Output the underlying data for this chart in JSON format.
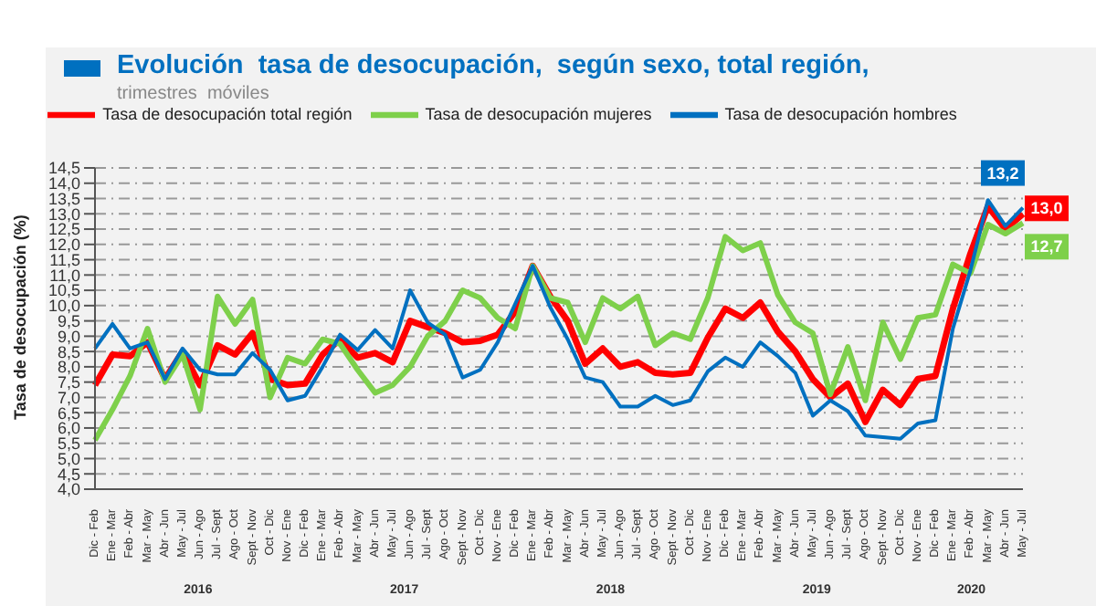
{
  "chart_data": {
    "type": "line",
    "title": "Evolución  tasa de desocupación,  según sexo, total región,",
    "subtitle": "trimestres  móviles",
    "ylabel": "Tasa de desocupación (%)",
    "categories": [
      "Dic - Feb",
      "Ene - Mar",
      "Feb - Abr",
      "Mar - May",
      "Abr - Jun",
      "May - Jul",
      "Jun - Ago",
      "Jul - Sept",
      "Ago - Oct",
      "Sept - Nov",
      "Oct - Dic",
      "Nov - Ene",
      "Dic - Feb",
      "Ene - Mar",
      "Feb - Abr",
      "Mar - May",
      "Abr - Jun",
      "May - Jul",
      "Jun - Ago",
      "Jul - Sept",
      "Ago - Oct",
      "Sept - Nov",
      "Oct - Dic",
      "Nov - Ene",
      "Dic - Feb",
      "Ene - Mar",
      "Feb - Abr",
      "Mar - May",
      "Abr - Jun",
      "May - Jul",
      "Jun - Ago",
      "Jul - Sept",
      "Ago - Oct",
      "Sept - Nov",
      "Oct - Dic",
      "Nov - Ene",
      "Dic - Feb",
      "Ene - Mar",
      "Feb - Abr",
      "Mar - May",
      "Abr - Jun",
      "May - Jul",
      "Jun - Ago",
      "Jul - Sept",
      "Ago - Oct",
      "Sept - Nov",
      "Oct - Dic",
      "Nov - Ene",
      "Dic - Feb",
      "Ene - Mar",
      "Feb - Abr",
      "Mar - May",
      "Abr - Jun",
      "May - Jul"
    ],
    "series": [
      {
        "name": "Tasa de desocupación total región",
        "color": "#ff0000",
        "values": [
          7.4,
          8.4,
          8.35,
          8.8,
          7.6,
          8.5,
          7.4,
          8.7,
          8.4,
          9.1,
          7.6,
          7.4,
          7.45,
          8.4,
          8.9,
          8.3,
          8.45,
          8.15,
          9.5,
          9.3,
          9.1,
          8.8,
          8.85,
          9.05,
          9.8,
          11.3,
          10.3,
          9.5,
          8.1,
          8.6,
          8.0,
          8.15,
          7.8,
          7.75,
          7.8,
          8.95,
          9.9,
          9.6,
          10.1,
          9.15,
          8.5,
          7.6,
          7.0,
          7.45,
          6.2,
          7.25,
          6.75,
          7.6,
          7.7,
          9.9,
          11.7,
          13.25,
          12.5,
          13.0
        ],
        "value_labels": [
          null,
          null,
          null,
          null,
          null,
          null,
          null,
          null,
          null,
          null,
          null,
          null,
          null,
          null,
          null,
          null,
          null,
          null,
          null,
          null,
          null,
          null,
          null,
          null,
          null,
          null,
          null,
          null,
          null,
          null,
          null,
          null,
          null,
          null,
          null,
          null,
          null,
          null,
          null,
          null,
          null,
          null,
          null,
          null,
          null,
          null,
          null,
          null,
          null,
          null,
          null,
          null,
          null,
          "13,0"
        ]
      },
      {
        "name": "Tasa de desocupación mujeres",
        "color": "#7ed04b",
        "values": [
          5.6,
          6.6,
          7.7,
          9.25,
          7.5,
          8.4,
          6.6,
          10.3,
          9.4,
          10.2,
          7.0,
          8.3,
          8.1,
          8.9,
          8.75,
          7.9,
          7.15,
          7.4,
          8.0,
          9.0,
          9.5,
          10.5,
          10.25,
          9.6,
          9.25,
          11.3,
          10.25,
          10.1,
          8.8,
          10.25,
          9.9,
          10.3,
          8.7,
          9.1,
          8.9,
          10.25,
          12.25,
          11.8,
          12.05,
          10.35,
          9.45,
          9.1,
          7.1,
          8.65,
          6.9,
          9.45,
          8.25,
          9.6,
          9.7,
          11.35,
          11.05,
          12.65,
          12.35,
          12.7
        ],
        "value_labels": [
          null,
          null,
          null,
          null,
          null,
          null,
          null,
          null,
          null,
          null,
          null,
          null,
          null,
          null,
          null,
          null,
          null,
          null,
          null,
          null,
          null,
          null,
          null,
          null,
          null,
          null,
          null,
          null,
          null,
          null,
          null,
          null,
          null,
          null,
          null,
          null,
          null,
          null,
          null,
          null,
          null,
          null,
          null,
          null,
          null,
          null,
          null,
          null,
          null,
          null,
          null,
          null,
          null,
          "12,7"
        ]
      },
      {
        "name": "Tasa de desocupación hombres",
        "color": "#0070c0",
        "values": [
          8.6,
          9.4,
          8.6,
          8.8,
          7.6,
          8.6,
          7.9,
          7.75,
          7.75,
          8.45,
          7.9,
          6.9,
          7.05,
          8.0,
          9.05,
          8.55,
          9.2,
          8.6,
          10.5,
          9.45,
          9.05,
          7.65,
          7.9,
          8.8,
          10.05,
          11.3,
          9.95,
          8.9,
          7.65,
          7.5,
          6.7,
          6.7,
          7.05,
          6.75,
          6.9,
          7.85,
          8.3,
          8.0,
          8.8,
          8.35,
          7.8,
          6.4,
          6.9,
          6.55,
          5.75,
          5.7,
          5.65,
          6.15,
          6.25,
          9.25,
          11.15,
          13.45,
          12.6,
          13.2
        ],
        "value_labels": [
          null,
          null,
          null,
          null,
          null,
          null,
          null,
          null,
          null,
          null,
          null,
          null,
          null,
          null,
          null,
          null,
          null,
          null,
          null,
          null,
          null,
          null,
          null,
          null,
          null,
          null,
          null,
          null,
          null,
          null,
          null,
          null,
          null,
          null,
          null,
          null,
          null,
          null,
          null,
          null,
          null,
          null,
          null,
          null,
          null,
          null,
          null,
          null,
          null,
          null,
          null,
          null,
          null,
          "13,2"
        ]
      }
    ],
    "ylim": [
      4,
      14.5
    ],
    "yticks": [
      {
        "value": 4,
        "label": "4,0"
      },
      {
        "value": 4.5,
        "label": "4,5"
      },
      {
        "value": 5,
        "label": "5,0"
      },
      {
        "value": 5.5,
        "label": "5,5"
      },
      {
        "value": 6,
        "label": "6,0"
      },
      {
        "value": 6.5,
        "label": "6,5"
      },
      {
        "value": 7,
        "label": "7,0"
      },
      {
        "value": 7.5,
        "label": "7,5"
      },
      {
        "value": 8,
        "label": "8,0"
      },
      {
        "value": 8.5,
        "label": "8,5"
      },
      {
        "value": 9,
        "label": "9,0"
      },
      {
        "value": 9.5,
        "label": "9,5"
      },
      {
        "value": 10,
        "label": "10,0"
      },
      {
        "value": 10.5,
        "label": "10,5"
      },
      {
        "value": 11,
        "label": "11,0"
      },
      {
        "value": 11.5,
        "label": "11,5"
      },
      {
        "value": 12,
        "label": "12,0"
      },
      {
        "value": 12.5,
        "label": "12,5"
      },
      {
        "value": 13,
        "label": "13,0"
      },
      {
        "value": 13.5,
        "label": "13,5"
      },
      {
        "value": 14,
        "label": "14,0"
      },
      {
        "value": 14.5,
        "label": "14,5"
      }
    ],
    "grid": "y",
    "legend": "top",
    "marker": "none",
    "line_style": "solid",
    "annotations": [
      "2016",
      "2017",
      "2018",
      "2019",
      "2020"
    ]
  }
}
